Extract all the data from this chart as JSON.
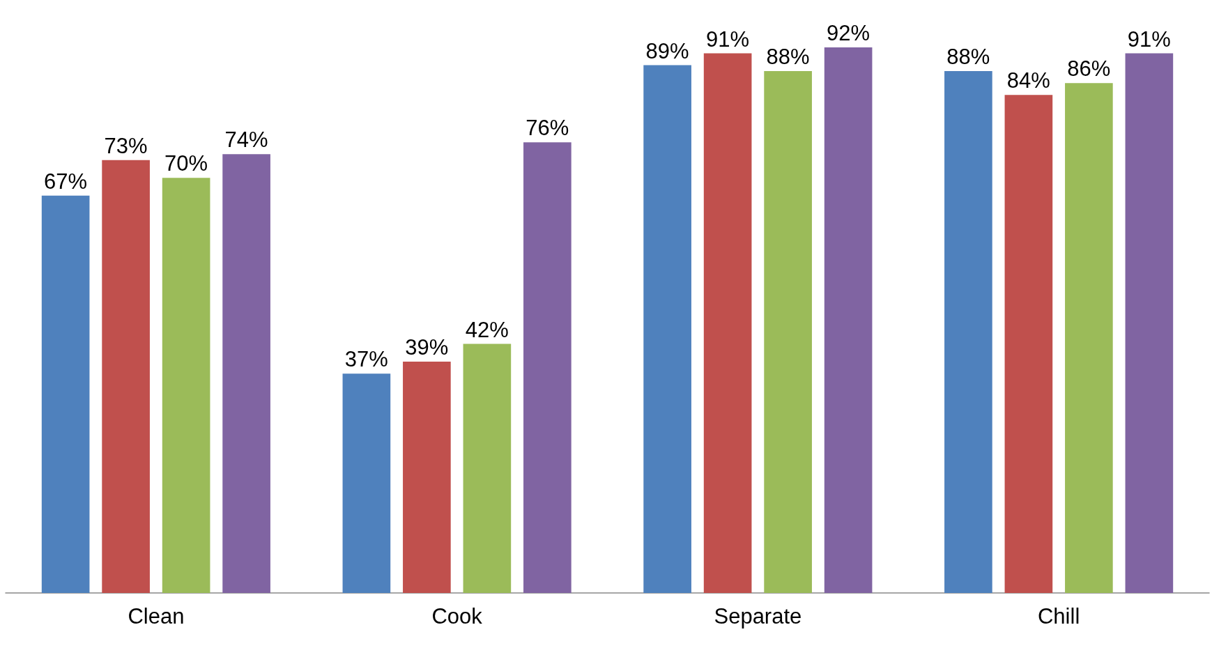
{
  "chart_data": {
    "type": "bar",
    "categories": [
      "Clean",
      "Cook",
      "Separate",
      "Chill"
    ],
    "series": [
      {
        "color": "#4f81bd",
        "values": [
          67,
          37,
          89,
          88
        ],
        "value_labels": [
          "67%",
          "37%",
          "89%",
          "88%"
        ]
      },
      {
        "color": "#c0504d",
        "values": [
          73,
          39,
          91,
          84
        ],
        "value_labels": [
          "73%",
          "39%",
          "91%",
          "84%"
        ]
      },
      {
        "color": "#9bbb59",
        "values": [
          70,
          42,
          88,
          86
        ],
        "value_labels": [
          "70%",
          "42%",
          "88%",
          "86%"
        ]
      },
      {
        "color": "#8064a2",
        "values": [
          74,
          76,
          92,
          91
        ],
        "value_labels": [
          "74%",
          "76%",
          "92%",
          "91%"
        ]
      }
    ],
    "tick_labels": "x"
  }
}
